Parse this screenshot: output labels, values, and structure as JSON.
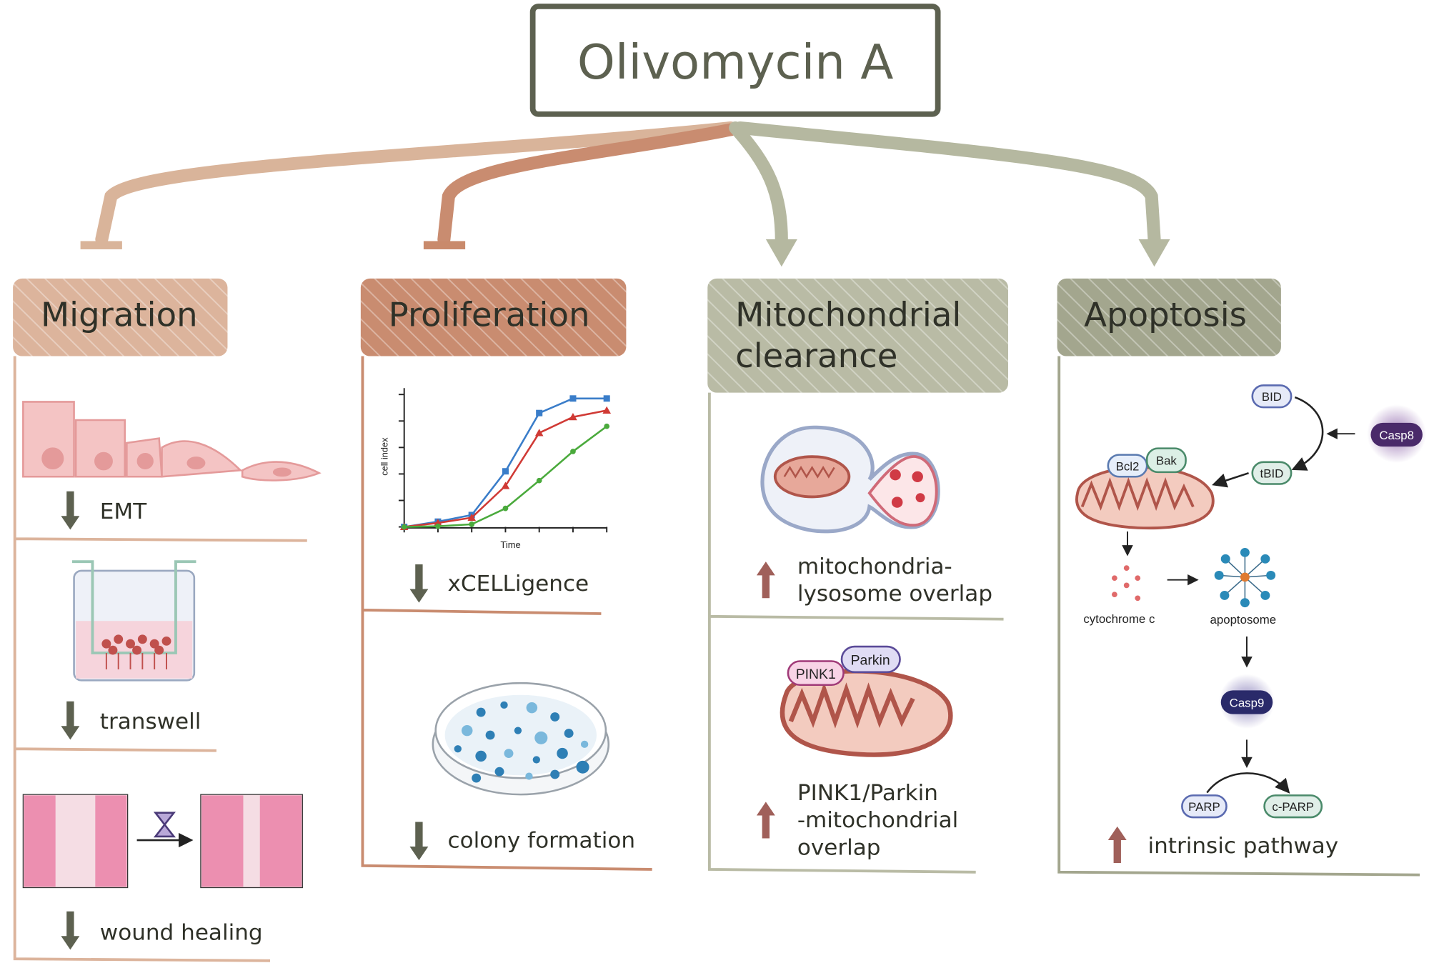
{
  "title": "Olivomycin A",
  "colors": {
    "migration": "#dcb49c",
    "proliferation": "#c98c70",
    "mitochondrial": "#b9bba5",
    "apoptosis": "#a3a68e",
    "title_border": "#5d6150",
    "down_arrow": "#5d6150",
    "up_arrow": "#a0605a"
  },
  "columns": [
    {
      "header": "Migration",
      "items": [
        {
          "label": "EMT",
          "direction": "down"
        },
        {
          "label": "transwell",
          "direction": "down"
        },
        {
          "label": "wound healing",
          "direction": "down"
        }
      ],
      "relation": "inhibits"
    },
    {
      "header": "Proliferation",
      "items": [
        {
          "label": "xCELLigence",
          "direction": "down"
        },
        {
          "label": "colony formation",
          "direction": "down"
        }
      ],
      "relation": "inhibits"
    },
    {
      "header_line1": "Mitochondrial",
      "header_line2": "clearance",
      "items": [
        {
          "line1": "mitochondria-",
          "line2": "lysosome overlap",
          "direction": "up"
        },
        {
          "line1": "PINK1/Parkin",
          "line2": "-mitochondrial",
          "line3": "overlap",
          "direction": "up"
        }
      ],
      "labels": {
        "pink1": "PINK1",
        "parkin": "Parkin"
      },
      "relation": "promotes"
    },
    {
      "header": "Apoptosis",
      "items": [
        {
          "label": "intrinsic pathway",
          "direction": "up"
        }
      ],
      "labels": {
        "bid": "BID",
        "casp8": "Casp8",
        "tbid": "tBID",
        "bcl2": "Bcl2",
        "bak": "Bak",
        "cytochrome": "cytochrome c",
        "apoptosome": "apoptosome",
        "casp9": "Casp9",
        "parp": "PARP",
        "cparp": "c-PARP"
      },
      "relation": "promotes"
    }
  ],
  "chart_data": {
    "type": "line",
    "xlabel": "Time",
    "ylabel": "cell index",
    "x": [
      0,
      1,
      2,
      3,
      4,
      5,
      6
    ],
    "ylim": [
      0,
      100
    ],
    "grid": false,
    "series": [
      {
        "color": "#3a7dc9",
        "marker": "square",
        "values": [
          0,
          4,
          9,
          42,
          86,
          97,
          97
        ]
      },
      {
        "color": "#d03a35",
        "marker": "triangle",
        "values": [
          0,
          3,
          7,
          31,
          71,
          83,
          88
        ]
      },
      {
        "color": "#4aaa3c",
        "marker": "circle",
        "values": [
          0,
          0.5,
          2,
          14,
          35,
          57,
          76
        ]
      }
    ]
  }
}
